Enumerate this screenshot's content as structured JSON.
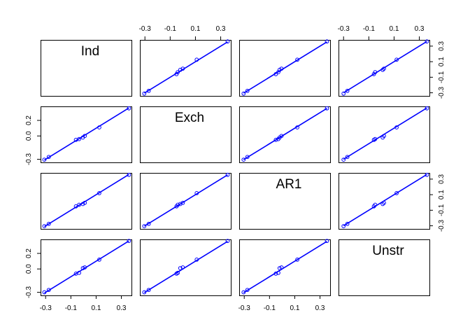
{
  "chart_data": {
    "type": "scatter",
    "subtype": "scatterplot-matrix",
    "title": "",
    "variables": [
      "Ind",
      "Exch",
      "AR1",
      "Unstr"
    ],
    "axis_range": [
      -0.34,
      0.38
    ],
    "ticks": [
      -0.3,
      -0.1,
      0.1,
      0.3
    ],
    "tick_labels": [
      "-0.3",
      "-0.1",
      "0.1",
      "0.3"
    ],
    "y_tick_labels": [
      "-0.3",
      "0.0",
      "0.2"
    ],
    "y_tick_values": [
      -0.3,
      0.0,
      0.2
    ],
    "grid": false,
    "point_color": "#0000ff",
    "line_color": "#0000ff",
    "reference_line": "y = x",
    "values": {
      "Ind": [
        -0.31,
        -0.275,
        -0.06,
        -0.035,
        -0.005,
        0.01,
        0.125,
        0.36
      ],
      "Exch": [
        -0.305,
        -0.27,
        -0.05,
        -0.04,
        -0.02,
        0.0,
        0.11,
        0.355
      ],
      "AR1": [
        -0.305,
        -0.275,
        -0.05,
        -0.03,
        -0.02,
        -0.005,
        0.12,
        0.355
      ],
      "Unstr": [
        -0.3,
        -0.27,
        -0.06,
        -0.05,
        0.01,
        0.02,
        0.12,
        0.36
      ]
    }
  }
}
